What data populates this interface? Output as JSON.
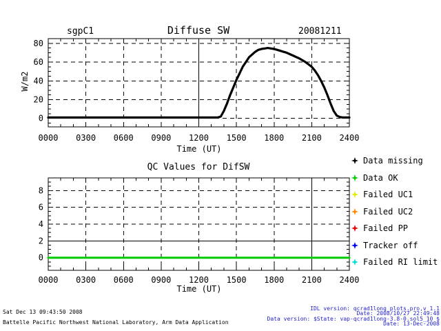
{
  "page": {
    "background": "#ffffff",
    "text_color": "#000000"
  },
  "footer_left": {
    "line1": "Sat Dec 13 09:43:50 2008",
    "line2": "Battelle Pacific Northwest National Laboratory, Arm Data Application"
  },
  "footer_right": {
    "color": "#2222cc",
    "lines": [
      "IDL version: qcrad1long_plots.pro,v 1.1",
      "Date: 2008/10/27 22:49:48",
      "Data version: $State: vap-qcrad1long-3.8-0.sol5_10 $",
      "Date: 13-Dec-2008"
    ]
  },
  "legend": {
    "items": [
      {
        "label": "Data missing",
        "color": "#000000"
      },
      {
        "label": "Data OK",
        "color": "#00cc00"
      },
      {
        "label": "Failed UC1",
        "color": "#e8e800"
      },
      {
        "label": "Failed UC2",
        "color": "#ff8800"
      },
      {
        "label": "Failed PP",
        "color": "#ee0000"
      },
      {
        "label": "Tracker off",
        "color": "#0000ee"
      },
      {
        "label": "Failed RI limit",
        "color": "#00dddd"
      }
    ]
  },
  "chart_data": [
    {
      "type": "line",
      "title": "Diffuse SW",
      "site_label": "sgpC1",
      "date_label": "20081211",
      "xlabel": "Time (UT)",
      "ylabel": "W/m2",
      "xticks": [
        "0000",
        "0300",
        "0600",
        "0900",
        "1200",
        "1500",
        "1800",
        "2100",
        "2400"
      ],
      "yticks": [
        0,
        20,
        40,
        60,
        80
      ],
      "ylim": [
        -9,
        85
      ],
      "grid": "dashed",
      "legend_position": "none",
      "solid_vgridlines": [
        "1200"
      ],
      "solid_hgridlines": [],
      "series": [
        {
          "name": "diffuse_sw",
          "color": "#000000",
          "width": 3.2,
          "points": [
            [
              "0000",
              1
            ],
            [
              "0100",
              1
            ],
            [
              "0200",
              1
            ],
            [
              "0300",
              1
            ],
            [
              "0400",
              1
            ],
            [
              "0500",
              1
            ],
            [
              "0600",
              1
            ],
            [
              "0700",
              1
            ],
            [
              "0800",
              1
            ],
            [
              "0900",
              1
            ],
            [
              "1000",
              1
            ],
            [
              "1100",
              1
            ],
            [
              "1200",
              1
            ],
            [
              "1300",
              1
            ],
            [
              "1330",
              1
            ],
            [
              "1345",
              2
            ],
            [
              "1400",
              8
            ],
            [
              "1415",
              16
            ],
            [
              "1430",
              25
            ],
            [
              "1445",
              33
            ],
            [
              "1500",
              41
            ],
            [
              "1515",
              48
            ],
            [
              "1530",
              55
            ],
            [
              "1545",
              60
            ],
            [
              "1600",
              65
            ],
            [
              "1615",
              68
            ],
            [
              "1630",
              71
            ],
            [
              "1645",
              73
            ],
            [
              "1700",
              74
            ],
            [
              "1715",
              74.5
            ],
            [
              "1730",
              75
            ],
            [
              "1745",
              74.5
            ],
            [
              "1800",
              74
            ],
            [
              "1815",
              73
            ],
            [
              "1830",
              72
            ],
            [
              "1845",
              71
            ],
            [
              "1900",
              70
            ],
            [
              "1915",
              68.5
            ],
            [
              "1930",
              67
            ],
            [
              "1945",
              65.5
            ],
            [
              "2000",
              64
            ],
            [
              "2015",
              62
            ],
            [
              "2030",
              60
            ],
            [
              "2045",
              57.5
            ],
            [
              "2100",
              55
            ],
            [
              "2115",
              51
            ],
            [
              "2130",
              46
            ],
            [
              "2145",
              40
            ],
            [
              "2200",
              33
            ],
            [
              "2215",
              25
            ],
            [
              "2230",
              16
            ],
            [
              "2245",
              8
            ],
            [
              "2300",
              3
            ],
            [
              "2315",
              1.5
            ],
            [
              "2330",
              1
            ],
            [
              "2400",
              1
            ]
          ]
        }
      ]
    },
    {
      "type": "line",
      "title": "QC Values for DifSW",
      "xlabel": "Time (UT)",
      "ylabel": "",
      "xticks": [
        "0000",
        "0300",
        "0600",
        "0900",
        "1200",
        "1500",
        "1800",
        "2100",
        "2400"
      ],
      "yticks": [
        0,
        2,
        4,
        6,
        8
      ],
      "ylim": [
        -1.5,
        9.5
      ],
      "grid": "dashed",
      "legend_position": "right",
      "solid_vgridlines": [
        "2100"
      ],
      "solid_hgridlines": [
        2
      ],
      "series": [
        {
          "name": "Data OK",
          "color": "#00cc00",
          "width": 3,
          "points": [
            [
              "0000",
              0
            ],
            [
              "2400",
              0
            ]
          ]
        }
      ]
    }
  ]
}
